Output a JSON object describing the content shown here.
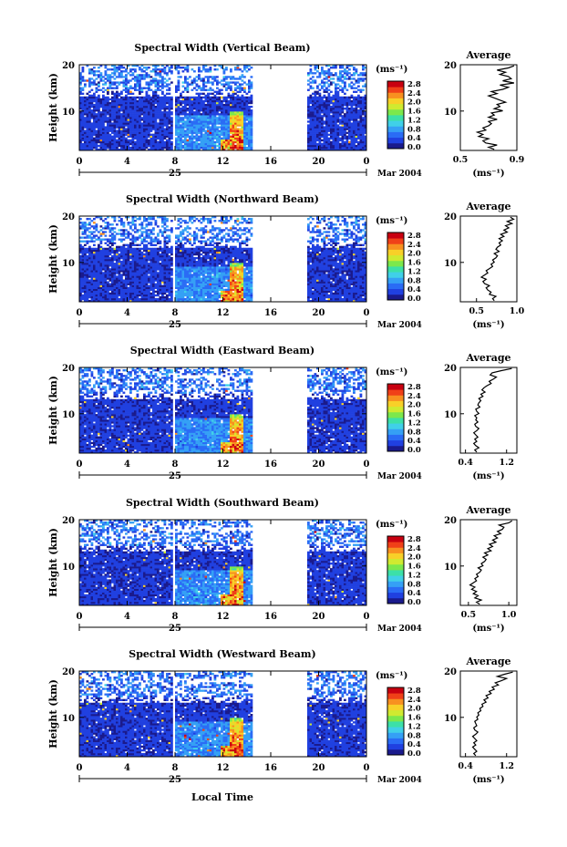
{
  "figure": {
    "xlabel_bottom": "Local Time",
    "date_label": "Mar 2004",
    "day_label": "25",
    "unit_label": "(ms⁻¹)",
    "avg_title": "Average",
    "avg_xlabel": "(ms⁻¹)",
    "ylabel": "Height (km)"
  },
  "colorbar": {
    "ticks": [
      "2.8",
      "2.4",
      "2.0",
      "1.6",
      "1.2",
      "0.8",
      "0.4",
      "0.0"
    ],
    "colors": [
      "#1a1a8c",
      "#2040e0",
      "#2a6cf5",
      "#35a0f5",
      "#40d0e8",
      "#3ce0a8",
      "#7ce84c",
      "#d0ea30",
      "#f8d028",
      "#f89020",
      "#f04018",
      "#c80010"
    ]
  },
  "chart_data": [
    {
      "type": "heatmap",
      "title": "Spectral Width (Vertical Beam)",
      "xlim": [
        0,
        24
      ],
      "ylim": [
        1.5,
        20
      ],
      "xticks": [
        "0",
        "4",
        "8",
        "12",
        "16",
        "20",
        "0"
      ],
      "yticks": [
        "10",
        "20"
      ],
      "clim": [
        0,
        3.0
      ],
      "data_gaps": [
        [
          7.8,
          8.0
        ],
        [
          14.5,
          19
        ]
      ],
      "avg_profile": {
        "xlim": [
          0.5,
          0.9
        ],
        "xticks": [
          "0.5",
          "0.9"
        ],
        "values": [
          0.74,
          0.7,
          0.76,
          0.68,
          0.66,
          0.7,
          0.63,
          0.66,
          0.62,
          0.68,
          0.66,
          0.7,
          0.72,
          0.7,
          0.76,
          0.7,
          0.74,
          0.72,
          0.8,
          0.74,
          0.78,
          0.76,
          0.82,
          0.78,
          0.74,
          0.7,
          0.76,
          0.72,
          0.8,
          0.84,
          0.78,
          0.88,
          0.8,
          0.86,
          0.84,
          0.78,
          0.82,
          0.76,
          0.84,
          0.88
        ]
      }
    },
    {
      "type": "heatmap",
      "title": "Spectral Width (Northward Beam)",
      "xlim": [
        0,
        24
      ],
      "ylim": [
        1.5,
        20
      ],
      "xticks": [
        "0",
        "4",
        "8",
        "12",
        "16",
        "20",
        "0"
      ],
      "yticks": [
        "10",
        "20"
      ],
      "clim": [
        0,
        3.0
      ],
      "data_gaps": [
        [
          7.8,
          8.0
        ],
        [
          14.5,
          19
        ]
      ],
      "avg_profile": {
        "xlim": [
          0.3,
          1.0
        ],
        "xticks": [
          "0.5",
          "1.0"
        ],
        "values": [
          0.72,
          0.7,
          0.74,
          0.66,
          0.68,
          0.64,
          0.62,
          0.66,
          0.6,
          0.58,
          0.62,
          0.56,
          0.6,
          0.64,
          0.62,
          0.66,
          0.7,
          0.68,
          0.72,
          0.7,
          0.74,
          0.76,
          0.72,
          0.78,
          0.74,
          0.76,
          0.8,
          0.78,
          0.82,
          0.78,
          0.84,
          0.8,
          0.88,
          0.84,
          0.9,
          0.86,
          0.94,
          0.88,
          0.96,
          0.92
        ]
      }
    },
    {
      "type": "heatmap",
      "title": "Spectral Width (Eastward Beam)",
      "xlim": [
        0,
        24
      ],
      "ylim": [
        1.5,
        20
      ],
      "xticks": [
        "0",
        "4",
        "8",
        "12",
        "16",
        "20",
        "0"
      ],
      "yticks": [
        "10",
        "20"
      ],
      "clim": [
        0,
        3.0
      ],
      "data_gaps": [
        [
          7.8,
          8.0
        ],
        [
          14.5,
          19
        ]
      ],
      "avg_profile": {
        "xlim": [
          0.3,
          1.4
        ],
        "xticks": [
          "0.4",
          "1.2"
        ],
        "values": [
          0.62,
          0.58,
          0.66,
          0.6,
          0.56,
          0.62,
          0.58,
          0.64,
          0.6,
          0.56,
          0.62,
          0.66,
          0.6,
          0.58,
          0.64,
          0.6,
          0.62,
          0.58,
          0.66,
          0.62,
          0.6,
          0.68,
          0.64,
          0.66,
          0.7,
          0.66,
          0.74,
          0.7,
          0.78,
          0.72,
          0.76,
          0.82,
          0.9,
          0.86,
          0.94,
          1.0,
          0.88,
          0.92,
          1.1,
          1.3
        ]
      }
    },
    {
      "type": "heatmap",
      "title": "Spectral Width (Southward Beam)",
      "xlim": [
        0,
        24
      ],
      "ylim": [
        1.5,
        20
      ],
      "xticks": [
        "0",
        "4",
        "8",
        "12",
        "16",
        "20",
        "0"
      ],
      "yticks": [
        "10",
        "20"
      ],
      "clim": [
        0,
        3.0
      ],
      "data_gaps": [
        [
          7.8,
          8.0
        ],
        [
          14.5,
          19
        ]
      ],
      "avg_profile": {
        "xlim": [
          0.4,
          1.1
        ],
        "xticks": [
          "0.5",
          "1.0"
        ],
        "values": [
          0.64,
          0.6,
          0.66,
          0.58,
          0.62,
          0.56,
          0.6,
          0.54,
          0.58,
          0.52,
          0.56,
          0.6,
          0.58,
          0.62,
          0.6,
          0.64,
          0.66,
          0.62,
          0.68,
          0.66,
          0.7,
          0.72,
          0.68,
          0.74,
          0.7,
          0.78,
          0.74,
          0.8,
          0.76,
          0.84,
          0.8,
          0.86,
          0.82,
          0.9,
          0.86,
          0.92,
          0.94,
          0.88,
          1.0,
          1.04
        ]
      }
    },
    {
      "type": "heatmap",
      "title": "Spectral Width (Westward Beam)",
      "xlim": [
        0,
        24
      ],
      "ylim": [
        1.5,
        20
      ],
      "xticks": [
        "0",
        "4",
        "8",
        "12",
        "16",
        "20",
        "0"
      ],
      "yticks": [
        "10",
        "20"
      ],
      "clim": [
        0,
        3.0
      ],
      "data_gaps": [
        [
          7.8,
          8.0
        ],
        [
          14.5,
          19
        ]
      ],
      "avg_profile": {
        "xlim": [
          0.3,
          1.4
        ],
        "xticks": [
          "0.4",
          "1.2"
        ],
        "values": [
          0.6,
          0.56,
          0.62,
          0.58,
          0.54,
          0.6,
          0.56,
          0.62,
          0.58,
          0.54,
          0.6,
          0.64,
          0.58,
          0.56,
          0.62,
          0.6,
          0.58,
          0.64,
          0.62,
          0.66,
          0.64,
          0.7,
          0.68,
          0.74,
          0.72,
          0.8,
          0.76,
          0.84,
          0.8,
          0.9,
          0.86,
          0.96,
          0.92,
          1.04,
          0.98,
          1.1,
          1.2,
          1.02,
          1.16,
          1.32
        ]
      }
    }
  ]
}
